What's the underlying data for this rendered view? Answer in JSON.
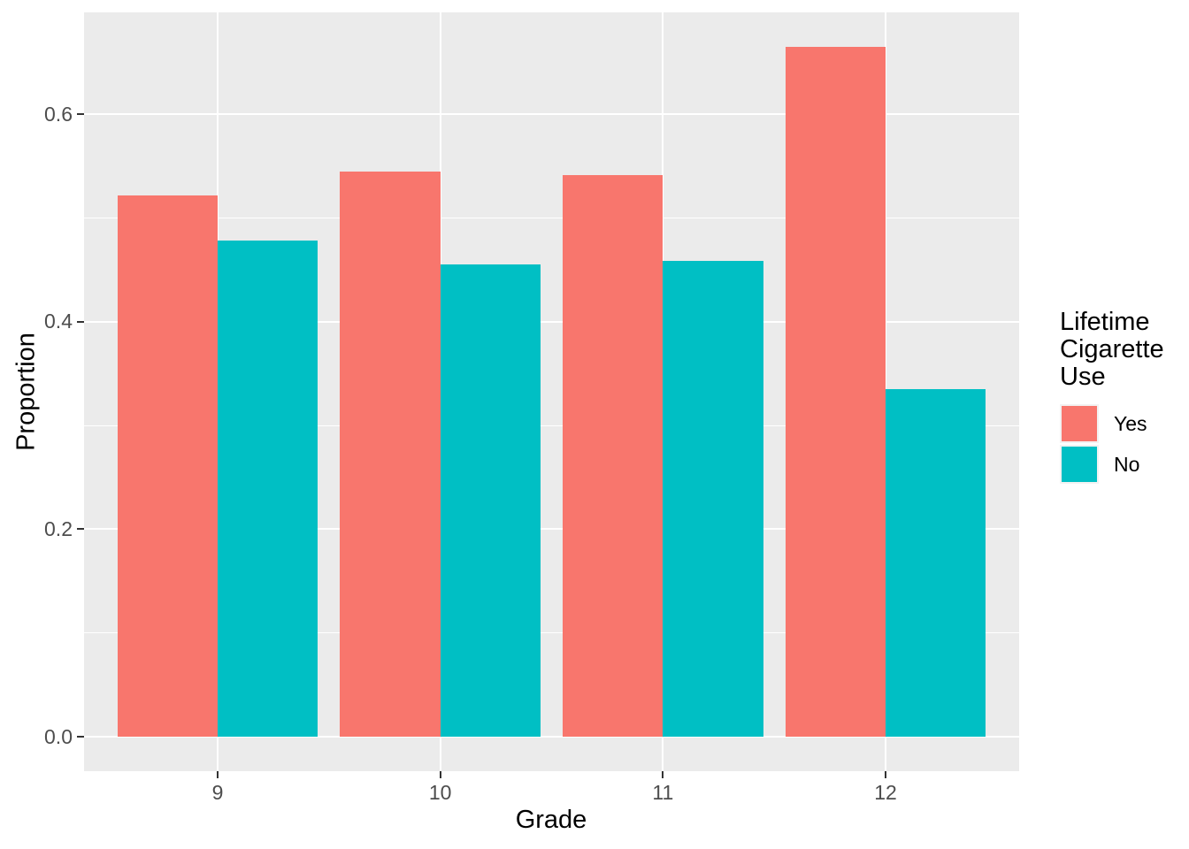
{
  "chart_data": {
    "type": "bar",
    "title": "",
    "categories": [
      "9",
      "10",
      "11",
      "12"
    ],
    "series": [
      {
        "name": "Yes",
        "color": "#F8766D",
        "values": [
          0.522,
          0.545,
          0.541,
          0.665
        ]
      },
      {
        "name": "No",
        "color": "#00BFC4",
        "values": [
          0.478,
          0.455,
          0.459,
          0.335
        ]
      }
    ],
    "xlabel": "Grade",
    "ylabel": "Proportion",
    "ylim": [
      0,
      0.7
    ],
    "yticks": [
      0.0,
      0.2,
      0.4,
      0.6
    ],
    "ytick_labels": [
      "0.0",
      "0.2",
      "0.4",
      "0.6"
    ],
    "yminor": [
      0.1,
      0.3,
      0.5
    ],
    "grid": "on",
    "legend_position": "right",
    "legend": {
      "title": "Lifetime Cigarette Use",
      "items": [
        {
          "label": "Yes",
          "color": "#F8766D"
        },
        {
          "label": "No",
          "color": "#00BFC4"
        }
      ]
    }
  },
  "styles": {
    "panel_background": "#EBEBEB",
    "gridline_color": "#FFFFFF",
    "tick_mark_color": "#333333",
    "tick_label_color": "#4D4D4D",
    "axis_title_color": "#000000",
    "figure_background": "#FFFFFF"
  }
}
